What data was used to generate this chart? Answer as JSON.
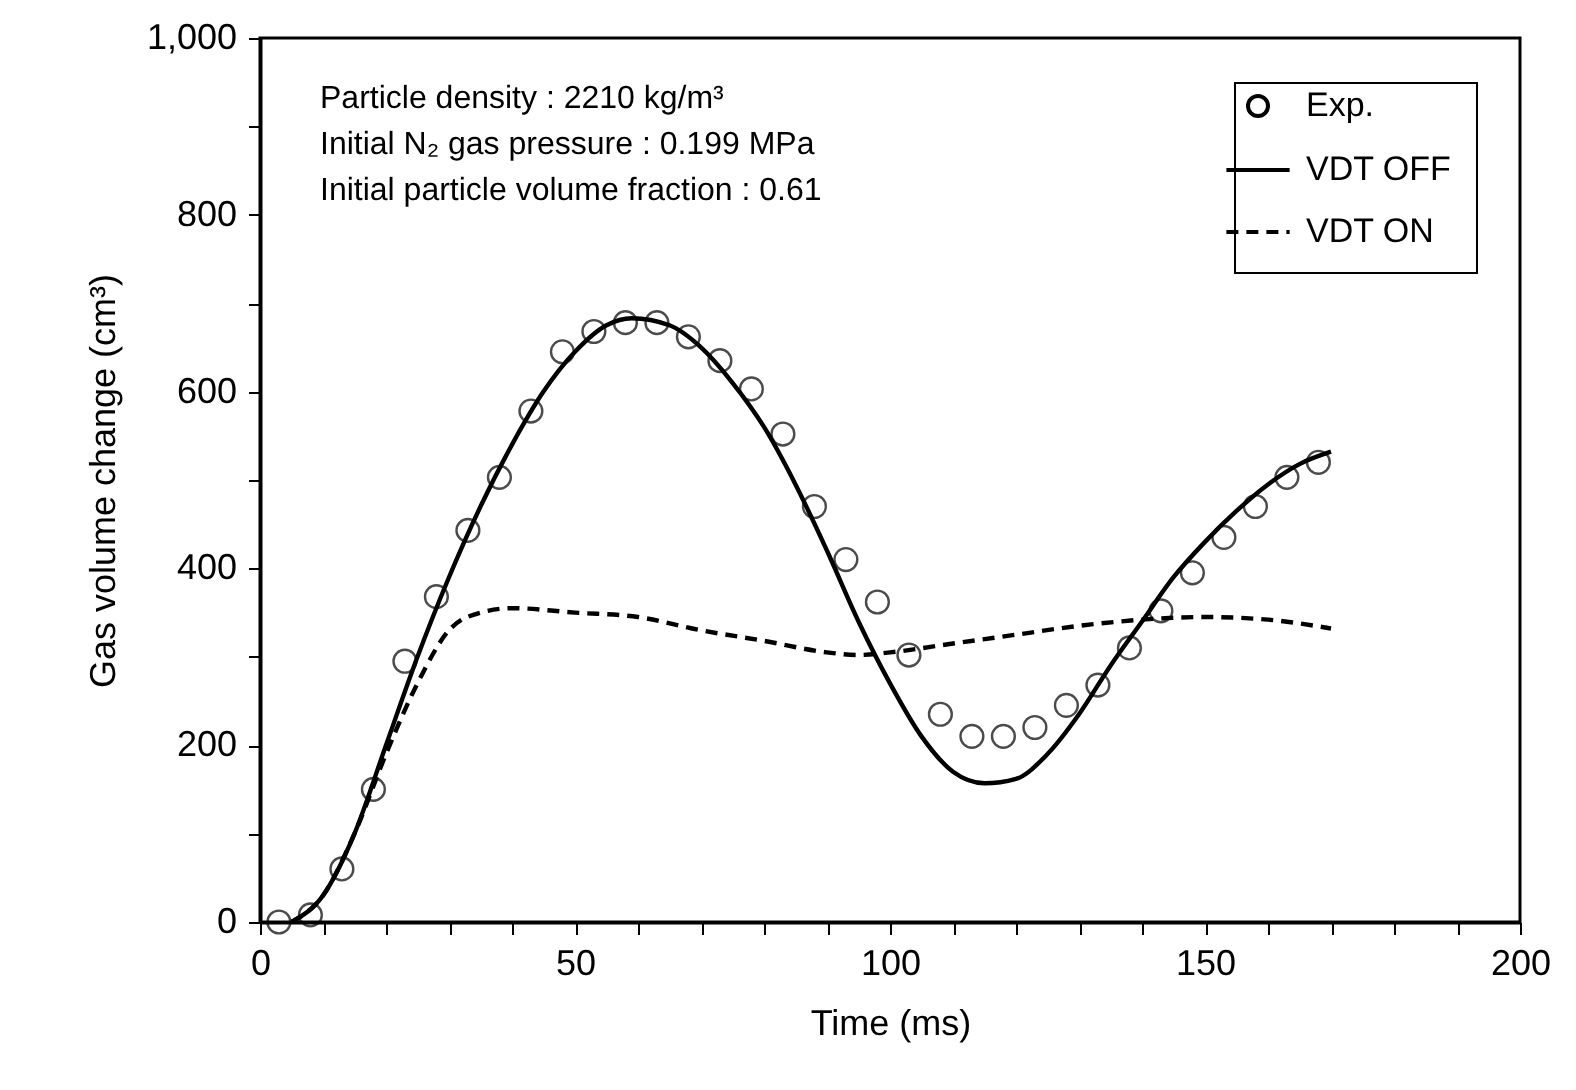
{
  "chart_data": {
    "type": "line",
    "xlabel": "Time (ms)",
    "ylabel": "Gas volume change (cm³)",
    "annotations": [
      "Particle density : 2210 kg/m³",
      "Initial N₂ gas pressure : 0.199 MPa",
      "Initial particle volume fraction : 0.61"
    ],
    "xlim": [
      0,
      200
    ],
    "xticks": [
      0,
      {
        "value": 10,
        "label": null
      },
      {
        "value": 20,
        "label": null
      },
      {
        "value": 30,
        "label": null
      },
      {
        "value": 40,
        "label": null
      },
      50,
      {
        "value": 60,
        "label": null
      },
      {
        "value": 70,
        "label": null
      },
      {
        "value": 80,
        "label": null
      },
      {
        "value": 90,
        "label": null
      },
      100,
      {
        "value": 110,
        "label": null
      },
      {
        "value": 120,
        "label": null
      },
      {
        "value": 130,
        "label": null
      },
      {
        "value": 140,
        "label": null
      },
      150,
      {
        "value": 160,
        "label": null
      },
      {
        "value": 170,
        "label": null
      },
      {
        "value": 180,
        "label": null
      },
      {
        "value": 190,
        "label": null
      },
      200
    ],
    "ylim": [
      0,
      1000
    ],
    "yticks": [
      0,
      {
        "value": 100,
        "label": null
      },
      200,
      {
        "value": 300,
        "label": null
      },
      400,
      {
        "value": 500,
        "label": null
      },
      600,
      {
        "value": 700,
        "label": null
      },
      800,
      {
        "value": 900,
        "label": null
      },
      {
        "value": 1000,
        "label": "1,000"
      }
    ],
    "grid": false,
    "legend": "top right",
    "series": [
      {
        "name": "Exp.",
        "type": "scatter",
        "marker": "circle",
        "color": "#000000",
        "x": [
          3,
          8,
          13,
          18,
          23,
          28,
          33,
          38,
          43,
          48,
          53,
          58,
          63,
          68,
          73,
          78,
          83,
          88,
          93,
          98,
          103,
          108,
          113,
          118,
          123,
          128,
          133,
          138,
          143,
          148,
          153,
          158,
          163,
          168
        ],
        "values": [
          0,
          8,
          60,
          150,
          295,
          368,
          443,
          503,
          578,
          645,
          668,
          678,
          678,
          662,
          635,
          603,
          552,
          470,
          410,
          362,
          302,
          235,
          210,
          210,
          220,
          245,
          268,
          310,
          352,
          395,
          435,
          470,
          503,
          520
        ]
      },
      {
        "name": "VDT OFF",
        "type": "line",
        "line_style": "solid",
        "color": "#000000",
        "x": [
          5,
          10,
          15,
          20,
          25,
          30,
          35,
          40,
          45,
          50,
          55,
          59,
          65,
          70,
          75,
          80,
          85,
          90,
          95,
          100,
          105,
          110,
          115,
          120,
          125,
          130,
          135,
          140,
          145,
          150,
          155,
          160,
          165,
          170
        ],
        "values": [
          0,
          30,
          100,
          200,
          300,
          390,
          470,
          540,
          600,
          645,
          675,
          683,
          675,
          650,
          610,
          560,
          495,
          420,
          340,
          270,
          210,
          170,
          157,
          162,
          190,
          235,
          290,
          340,
          390,
          430,
          465,
          495,
          518,
          532
        ]
      },
      {
        "name": "VDT ON",
        "type": "line",
        "line_style": "dashed",
        "color": "#000000",
        "x": [
          5,
          10,
          15,
          20,
          25,
          30,
          35,
          40,
          50,
          60,
          70,
          80,
          90,
          95,
          100,
          110,
          120,
          130,
          140,
          150,
          160,
          170
        ],
        "values": [
          0,
          30,
          100,
          190,
          270,
          330,
          350,
          355,
          350,
          345,
          330,
          318,
          305,
          302,
          305,
          315,
          325,
          335,
          342,
          345,
          342,
          332
        ]
      }
    ]
  }
}
